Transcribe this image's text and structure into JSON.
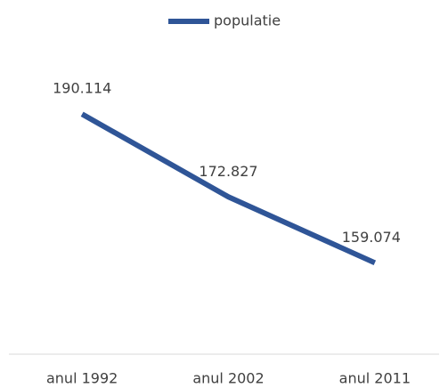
{
  "chart_data": {
    "type": "line",
    "categories": [
      "anul 1992",
      "anul 2002",
      "anul 2011"
    ],
    "series": [
      {
        "name": "populatie",
        "color": "#2f5597",
        "values": [
          190114,
          172827,
          159074
        ],
        "value_labels": [
          "190.114",
          "172.827",
          "159.074"
        ]
      }
    ],
    "ylim": [
      140000,
      200000
    ],
    "legend": "top"
  }
}
